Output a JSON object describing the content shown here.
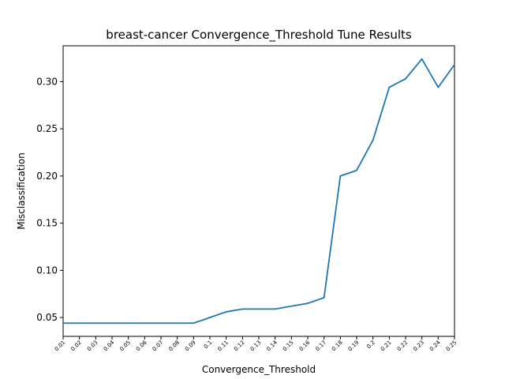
{
  "chart_data": {
    "type": "line",
    "title": "breast-cancer Convergence_Threshold Tune Results",
    "xlabel": "Convergence_Threshold",
    "ylabel": "Misclassification",
    "categories": [
      "0.01",
      "0.02",
      "0.03",
      "0.04",
      "0.05",
      "0.06",
      "0.07",
      "0.08",
      "0.09",
      "0.1",
      "0.11",
      "0.12",
      "0.13",
      "0.14",
      "0.15",
      "0.16",
      "0.17",
      "0.18",
      "0.19",
      "0.2",
      "0.21",
      "0.22",
      "0.23",
      "0.24",
      "0.25"
    ],
    "series": [
      {
        "values": [
          0.044,
          0.044,
          0.044,
          0.044,
          0.044,
          0.044,
          0.044,
          0.044,
          0.044,
          0.05,
          0.056,
          0.059,
          0.059,
          0.059,
          0.062,
          0.065,
          0.071,
          0.2,
          0.206,
          0.238,
          0.294,
          0.303,
          0.324,
          0.294,
          0.318
        ],
        "color": "#1f77b4"
      }
    ],
    "ylim": [
      0.03,
      0.338
    ],
    "yticks": [
      "0.05",
      "0.10",
      "0.15",
      "0.20",
      "0.25",
      "0.30"
    ],
    "ytick_values": [
      0.05,
      0.1,
      0.15,
      0.2,
      0.25,
      0.3
    ],
    "grid": false,
    "legend": "none"
  }
}
